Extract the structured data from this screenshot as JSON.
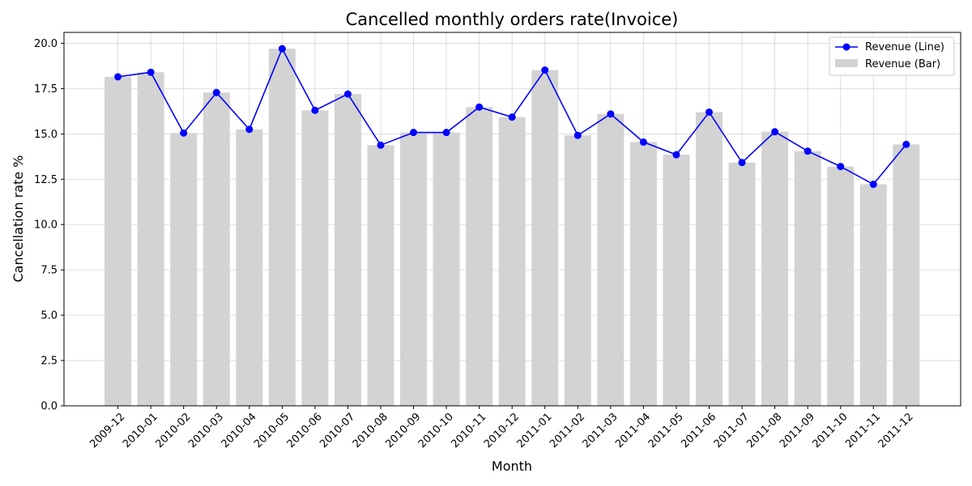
{
  "chart_data": {
    "type": "bar",
    "title": "Cancelled monthly orders rate(Invoice)",
    "xlabel": "Month",
    "ylabel": "Cancellation rate %",
    "categories": [
      "2009-12",
      "2010-01",
      "2010-02",
      "2010-03",
      "2010-04",
      "2010-05",
      "2010-06",
      "2010-07",
      "2010-08",
      "2010-09",
      "2010-10",
      "2010-11",
      "2010-12",
      "2011-01",
      "2011-02",
      "2011-03",
      "2011-04",
      "2011-05",
      "2011-06",
      "2011-07",
      "2011-08",
      "2011-09",
      "2011-10",
      "2011-11",
      "2011-12"
    ],
    "series": [
      {
        "name": "Revenue (Line)",
        "type": "line",
        "values": [
          18.15,
          18.4,
          15.05,
          17.28,
          15.25,
          19.7,
          16.3,
          17.2,
          14.38,
          15.08,
          15.08,
          16.48,
          15.93,
          18.52,
          14.92,
          16.1,
          14.55,
          13.85,
          16.2,
          13.42,
          15.12,
          14.05,
          13.2,
          12.22,
          14.42
        ]
      },
      {
        "name": "Revenue (Bar)",
        "type": "bar",
        "values": [
          18.15,
          18.4,
          15.05,
          17.28,
          15.25,
          19.7,
          16.3,
          17.2,
          14.38,
          15.08,
          15.08,
          16.48,
          15.93,
          18.52,
          14.92,
          16.1,
          14.55,
          13.85,
          16.2,
          13.42,
          15.12,
          14.05,
          13.2,
          12.22,
          14.42
        ]
      }
    ],
    "yticks": [
      "0.0",
      "2.5",
      "5.0",
      "7.5",
      "10.0",
      "12.5",
      "15.0",
      "17.5",
      "20.0"
    ],
    "ylim": [
      0,
      20.6
    ],
    "grid": true,
    "legend_position": "top-right",
    "colors": {
      "bar": "#d3d3d3",
      "line": "#0000ff"
    }
  }
}
